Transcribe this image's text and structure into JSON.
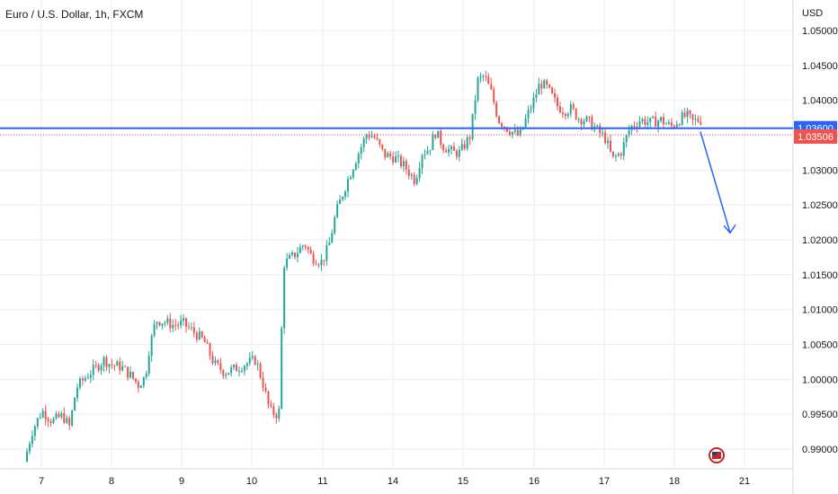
{
  "chart_title": "Euro / U.S. Dollar, 1h, FXCM",
  "currency": "USD",
  "chart_data": {
    "type": "candlestick",
    "title": "Euro / U.S. Dollar, 1h, FXCM",
    "y_unit": "USD",
    "ylim": [
      0.9875,
      1.0515
    ],
    "y_ticks": [
      "0.99000",
      "0.99500",
      "1.00000",
      "1.00500",
      "1.01000",
      "1.01500",
      "1.02000",
      "1.02500",
      "1.03000",
      "1.03500",
      "1.04000",
      "1.04500",
      "1.05000"
    ],
    "x_ticks": [
      "7",
      "8",
      "9",
      "10",
      "11",
      "14",
      "15",
      "16",
      "17",
      "18",
      "21"
    ],
    "xlim": [
      6.8,
      21.7
    ],
    "grid": true,
    "horizontal_level": 1.036,
    "level_label": "1.03600",
    "last_price": 1.03506,
    "last_price_label": "1.03506",
    "forecast_arrow": {
      "from": [
        18.35,
        1.0355
      ],
      "to": [
        18.77,
        1.021
      ]
    },
    "anchors": [
      [
        6.78,
        0.9882
      ],
      [
        6.9,
        0.9925
      ],
      [
        7.05,
        0.9955
      ],
      [
        7.2,
        0.994
      ],
      [
        7.35,
        0.9948
      ],
      [
        7.45,
        0.9932
      ],
      [
        7.55,
        0.9988
      ],
      [
        7.7,
        1.0005
      ],
      [
        7.85,
        1.0018
      ],
      [
        7.95,
        1.0028
      ],
      [
        8.05,
        1.0021
      ],
      [
        8.2,
        1.0018
      ],
      [
        8.35,
        1.0004
      ],
      [
        8.45,
        0.9992
      ],
      [
        8.55,
        1.0004
      ],
      [
        8.6,
        1.004
      ],
      [
        8.7,
        1.0085
      ],
      [
        8.8,
        1.0083
      ],
      [
        8.95,
        1.0078
      ],
      [
        9.1,
        1.008
      ],
      [
        9.25,
        1.0068
      ],
      [
        9.4,
        1.0055
      ],
      [
        9.55,
        1.0022
      ],
      [
        9.7,
        1.001
      ],
      [
        9.85,
        1.0015
      ],
      [
        10.0,
        1.0022
      ],
      [
        10.15,
        1.0028
      ],
      [
        10.25,
        0.9995
      ],
      [
        10.35,
        0.9955
      ],
      [
        10.48,
        0.9948
      ],
      [
        10.55,
        1.0165
      ],
      [
        10.7,
        1.0178
      ],
      [
        10.85,
        1.0195
      ],
      [
        10.95,
        1.0175
      ],
      [
        11.1,
        1.0168
      ],
      [
        11.2,
        1.0192
      ],
      [
        11.3,
        1.0238
      ],
      [
        11.45,
        1.028
      ],
      [
        11.6,
        1.0318
      ],
      [
        11.75,
        1.0352
      ],
      [
        11.85,
        1.0348
      ],
      [
        12.0,
        1.0322
      ],
      [
        12.15,
        1.0318
      ],
      [
        12.3,
        1.0305
      ],
      [
        12.45,
        1.0285
      ],
      [
        12.55,
        1.0325
      ],
      [
        12.65,
        1.033
      ],
      [
        12.75,
        1.0355
      ],
      [
        12.85,
        1.0335
      ],
      [
        13.0,
        1.0325
      ],
      [
        13.1,
        1.0325
      ],
      [
        13.25,
        1.035
      ],
      [
        13.35,
        1.0428
      ],
      [
        13.45,
        1.0435
      ],
      [
        13.55,
        1.041
      ],
      [
        13.65,
        1.0372
      ],
      [
        13.8,
        1.0358
      ],
      [
        13.95,
        1.0348
      ],
      [
        14.05,
        1.0375
      ],
      [
        14.15,
        1.0398
      ],
      [
        14.25,
        1.0425
      ],
      [
        14.35,
        1.0418
      ],
      [
        14.5,
        1.0392
      ],
      [
        14.6,
        1.0385
      ],
      [
        14.7,
        1.0388
      ],
      [
        14.8,
        1.0375
      ],
      [
        14.95,
        1.037
      ],
      [
        15.1,
        1.0355
      ],
      [
        15.2,
        1.0345
      ],
      [
        15.3,
        1.0315
      ],
      [
        15.42,
        1.0325
      ],
      [
        15.55,
        1.036
      ],
      [
        15.7,
        1.0372
      ],
      [
        15.85,
        1.0368
      ],
      [
        16.0,
        1.0372
      ],
      [
        16.15,
        1.0362
      ],
      [
        16.3,
        1.0375
      ],
      [
        16.4,
        1.0378
      ],
      [
        16.45,
        1.0369
      ],
      [
        16.55,
        1.0372
      ]
    ],
    "x_domain_note": "chart x is the calendar day axis with compressed weekend"
  }
}
